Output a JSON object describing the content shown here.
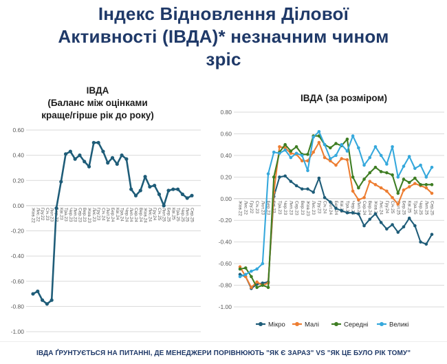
{
  "page": {
    "title_lines": [
      "Індекс Відновлення Ділової",
      "Активності (ІВДА)* незначним чином",
      "зріс"
    ],
    "footnote": "ІВДА ҐРУНТУЄТЬСЯ НА ПИТАННІ, ДЕ МЕНЕДЖЕРИ ПОРІВНЮЮТЬ \"ЯК Є ЗАРАЗ\" VS \"ЯК ЦЕ БУЛО РІК ТОМУ\""
  },
  "colors": {
    "title_navy": "#1F3968",
    "chart_title": "#1A1A1A",
    "axis_text": "#595959",
    "gridline": "#D9D9D9",
    "zero_line": "#C6C6C6",
    "micro": "#1E5C78",
    "small": "#ED7D31",
    "medium": "#3E7D23",
    "large": "#35A8DC"
  },
  "chart_data": [
    {
      "type": "line",
      "title_lines": [
        "ІВДА",
        "(Баланс між оцінками",
        "краще/гірше рік до року)"
      ],
      "categories": [
        "Жов.22",
        "Лис.22",
        "Гру.22",
        "Січ.23",
        "Лют.23",
        "Бер.23",
        "Кві.23",
        "Тра.23",
        "Чер.23",
        "Лип.23",
        "Сер.23",
        "Вер.23",
        "Жов.23",
        "Лис.23",
        "Гру.23",
        "Січ.24",
        "Лют.24",
        "Бер.24",
        "Кві.24",
        "Тра.24",
        "Чер.24",
        "Лип.24",
        "Сер.24",
        "Вер.24",
        "Жов.24",
        "Лис.24",
        "Гру.24",
        "Січ.25",
        "Лют.25",
        "Бер.25",
        "Кві.25",
        "Тра.25",
        "Чер.25",
        "Лип.25",
        "Сер.25"
      ],
      "series": [
        {
          "name": "ІВДА",
          "color_key": "micro",
          "values": [
            -0.7,
            -0.68,
            -0.75,
            -0.78,
            -0.75,
            -0.02,
            0.19,
            0.41,
            0.43,
            0.37,
            0.4,
            0.35,
            0.31,
            0.5,
            0.5,
            0.43,
            0.34,
            0.38,
            0.33,
            0.4,
            0.37,
            0.13,
            0.08,
            0.12,
            0.23,
            0.15,
            0.16,
            0.09,
            0.0,
            0.12,
            0.13,
            0.13,
            0.09,
            0.06,
            0.08
          ]
        }
      ],
      "ylim": [
        -1.0,
        0.6
      ],
      "yticks": [
        "0.60",
        "0.40",
        "0.20",
        "0.00",
        "-0.20",
        "-0.40",
        "-0.60",
        "-0.80",
        "-1.00"
      ],
      "grid": true,
      "legend": null,
      "x_labels_rotated": 90,
      "x_labels_at_zero_line": true
    },
    {
      "type": "line",
      "title_lines": [
        "ІВДА (за розміром)"
      ],
      "categories": [
        "Жов.22",
        "Лис.22",
        "Гру.22",
        "Січ.23",
        "Лют.23",
        "Бер.23",
        "Кві.23",
        "Тра.23",
        "Чер.23",
        "Лип.23",
        "Сер.23",
        "Вер.23",
        "Жов.23",
        "Лис.23",
        "Гру.23",
        "Січ.24",
        "Лют.24",
        "Бер.24",
        "Кві.24",
        "Тра.24",
        "Чер.24",
        "Лип.24",
        "Сер.24",
        "Вер.24",
        "Жов.24",
        "Лис.24",
        "Гру.24",
        "Січ.25",
        "Лют.25",
        "Бер.25",
        "Кві.25",
        "Тра.25",
        "Чер.25",
        "Лип.25",
        "Сер.25"
      ],
      "series": [
        {
          "name": "Мікро",
          "color_key": "micro",
          "values": [
            -0.7,
            -0.72,
            -0.83,
            -0.79,
            -0.78,
            -0.77,
            0.02,
            0.2,
            0.21,
            0.16,
            0.12,
            0.09,
            0.09,
            0.06,
            0.19,
            0.01,
            -0.03,
            -0.09,
            -0.11,
            -0.13,
            -0.13,
            -0.14,
            -0.25,
            -0.19,
            -0.14,
            -0.22,
            -0.28,
            -0.24,
            -0.31,
            -0.26,
            -0.18,
            -0.25,
            -0.4,
            -0.42,
            -0.33
          ]
        },
        {
          "name": "Малі",
          "color_key": "small",
          "values": [
            -0.63,
            -0.72,
            -0.82,
            -0.77,
            -0.8,
            -0.78,
            0.06,
            0.48,
            0.47,
            0.42,
            0.41,
            0.35,
            0.35,
            0.43,
            0.52,
            0.38,
            0.35,
            0.31,
            0.37,
            0.36,
            0.07,
            -0.01,
            0.01,
            0.16,
            0.13,
            0.1,
            0.07,
            0.01,
            -0.05,
            0.08,
            0.11,
            0.14,
            0.12,
            0.1,
            0.05
          ]
        },
        {
          "name": "Середні",
          "color_key": "medium",
          "values": [
            -0.65,
            -0.64,
            -0.72,
            -0.82,
            -0.8,
            -0.82,
            0.2,
            0.43,
            0.5,
            0.44,
            0.48,
            0.41,
            0.41,
            0.58,
            0.58,
            0.5,
            0.47,
            0.51,
            0.49,
            0.55,
            0.2,
            0.1,
            0.18,
            0.24,
            0.29,
            0.25,
            0.24,
            0.22,
            0.05,
            0.18,
            0.15,
            0.19,
            0.13,
            0.13,
            0.13
          ]
        },
        {
          "name": "Великі",
          "color_key": "large",
          "values": [
            -0.72,
            -0.7,
            -0.67,
            -0.65,
            -0.6,
            0.23,
            0.43,
            0.42,
            0.45,
            0.38,
            0.42,
            0.4,
            0.26,
            0.57,
            0.62,
            0.5,
            0.37,
            0.4,
            0.5,
            0.44,
            0.58,
            0.47,
            0.31,
            0.38,
            0.48,
            0.4,
            0.32,
            0.48,
            0.2,
            0.3,
            0.39,
            0.28,
            0.31,
            0.2,
            0.29
          ]
        }
      ],
      "ylim": [
        -1.0,
        0.8
      ],
      "yticks": [
        "0.80",
        "0.60",
        "0.40",
        "0.20",
        "0.00",
        "-0.20",
        "-0.40",
        "-0.60",
        "-0.80",
        "-1.00"
      ],
      "grid": true,
      "legend": "bottom",
      "x_labels_rotated": 90,
      "x_labels_at_zero_line": true
    }
  ]
}
